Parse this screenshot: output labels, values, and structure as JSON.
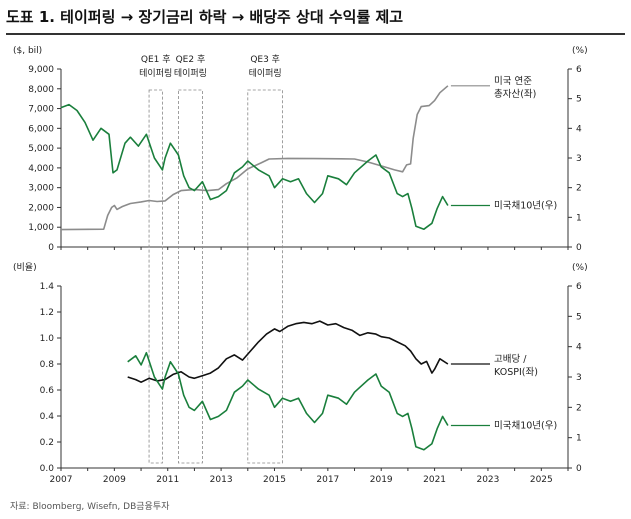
{
  "title": "도표 1. 테이퍼링 → 장기금리 하락 → 배당주 상대 수익률 제고",
  "source": "자료: Bloomberg, Wisefn, DB금융투자",
  "colors": {
    "gray": "#8c8c8c",
    "green": "#1a7f3c",
    "black": "#111111",
    "axis": "#333333"
  },
  "chart_data": [
    {
      "type": "line",
      "x_range": [
        2007,
        2026
      ],
      "left_axis": {
        "unit": "($, bil)",
        "ylim": [
          0,
          9000
        ],
        "ticks": [
          "0",
          "1,000",
          "2,000",
          "3,000",
          "4,000",
          "5,000",
          "6,000",
          "7,000",
          "8,000",
          "9,000"
        ]
      },
      "right_axis": {
        "unit": "(%)",
        "ylim": [
          0,
          6
        ],
        "ticks": [
          "0",
          "1",
          "2",
          "3",
          "4",
          "5",
          "6"
        ]
      },
      "annotations": [
        {
          "label_1": "QE1 후",
          "label_2": "테이퍼링",
          "x_start": 2010.3,
          "x_end": 2010.8
        },
        {
          "label_1": "QE2 후",
          "label_2": "테이퍼링",
          "x_start": 2011.4,
          "x_end": 2012.3
        },
        {
          "label_1": "QE3 후",
          "label_2": "테이퍼링",
          "x_start": 2014.0,
          "x_end": 2015.3
        }
      ],
      "series": [
        {
          "name": "미국 연준 총자산(좌)",
          "name_1": "미국 연준",
          "name_2": "총자산(좌)",
          "axis": "left",
          "color": "gray",
          "x": [
            2007.0,
            2008.6,
            2008.75,
            2008.9,
            2009.0,
            2009.1,
            2009.3,
            2009.6,
            2010.0,
            2010.3,
            2010.6,
            2010.9,
            2011.2,
            2011.5,
            2012.0,
            2012.5,
            2012.9,
            2013.2,
            2013.6,
            2014.0,
            2014.5,
            2014.8,
            2015.5,
            2016.5,
            2017.5,
            2018.0,
            2018.5,
            2019.0,
            2019.5,
            2019.8,
            2019.95,
            2020.1,
            2020.2,
            2020.35,
            2020.5,
            2020.8,
            2021.0,
            2021.2,
            2021.5
          ],
          "y": [
            880,
            900,
            1600,
            2000,
            2100,
            1900,
            2050,
            2200,
            2280,
            2350,
            2300,
            2330,
            2650,
            2850,
            2900,
            2850,
            2900,
            3200,
            3500,
            3950,
            4250,
            4450,
            4480,
            4470,
            4460,
            4450,
            4300,
            4100,
            3900,
            3800,
            4150,
            4200,
            5500,
            6700,
            7100,
            7150,
            7400,
            7800,
            8150
          ]
        },
        {
          "name": "미국채10년(우)",
          "axis": "right",
          "color": "green",
          "x": [
            2007.0,
            2007.3,
            2007.6,
            2007.9,
            2008.2,
            2008.5,
            2008.8,
            2008.95,
            2009.1,
            2009.4,
            2009.6,
            2009.9,
            2010.2,
            2010.5,
            2010.8,
            2010.9,
            2011.1,
            2011.4,
            2011.6,
            2011.8,
            2012.0,
            2012.3,
            2012.6,
            2012.9,
            2013.2,
            2013.5,
            2013.8,
            2014.0,
            2014.4,
            2014.8,
            2015.0,
            2015.3,
            2015.6,
            2015.9,
            2016.2,
            2016.5,
            2016.8,
            2017.0,
            2017.4,
            2017.7,
            2018.0,
            2018.5,
            2018.8,
            2019.0,
            2019.3,
            2019.6,
            2019.8,
            2020.0,
            2020.15,
            2020.3,
            2020.6,
            2020.9,
            2021.1,
            2021.3,
            2021.5
          ],
          "y": [
            4.7,
            4.8,
            4.6,
            4.2,
            3.6,
            4.0,
            3.8,
            2.5,
            2.6,
            3.5,
            3.7,
            3.4,
            3.8,
            3.0,
            2.6,
            3.0,
            3.5,
            3.1,
            2.4,
            2.0,
            1.9,
            2.2,
            1.6,
            1.7,
            1.9,
            2.5,
            2.7,
            2.9,
            2.6,
            2.4,
            2.0,
            2.3,
            2.2,
            2.3,
            1.8,
            1.5,
            1.8,
            2.4,
            2.3,
            2.1,
            2.5,
            2.9,
            3.1,
            2.7,
            2.5,
            1.8,
            1.7,
            1.8,
            1.3,
            0.7,
            0.6,
            0.8,
            1.3,
            1.7,
            1.4
          ]
        }
      ]
    },
    {
      "type": "line",
      "x_range": [
        2007,
        2026
      ],
      "xticks": [
        "2007",
        "2009",
        "2011",
        "2013",
        "2015",
        "2017",
        "2019",
        "2021",
        "2023",
        "2025"
      ],
      "left_axis": {
        "unit": "(비율)",
        "ylim": [
          0,
          1.4
        ],
        "ticks": [
          "0.0",
          "0.2",
          "0.4",
          "0.6",
          "0.8",
          "1.0",
          "1.2",
          "1.4"
        ]
      },
      "right_axis": {
        "unit": "(%)",
        "ylim": [
          0,
          6
        ],
        "ticks": [
          "0",
          "1",
          "2",
          "3",
          "4",
          "5",
          "6"
        ]
      },
      "series": [
        {
          "name": "고배당 / KOSPI(좌)",
          "name_1": "고배당 /",
          "name_2": "KOSPI(좌)",
          "axis": "left",
          "color": "black",
          "x": [
            2009.5,
            2009.8,
            2010.0,
            2010.3,
            2010.6,
            2010.9,
            2011.2,
            2011.5,
            2011.8,
            2012.0,
            2012.3,
            2012.6,
            2012.9,
            2013.2,
            2013.5,
            2013.8,
            2014.1,
            2014.4,
            2014.7,
            2015.0,
            2015.2,
            2015.5,
            2015.8,
            2016.1,
            2016.4,
            2016.7,
            2017.0,
            2017.3,
            2017.6,
            2017.9,
            2018.2,
            2018.5,
            2018.8,
            2019.0,
            2019.3,
            2019.6,
            2019.9,
            2020.1,
            2020.3,
            2020.5,
            2020.7,
            2020.9,
            2021.0,
            2021.2,
            2021.5
          ],
          "y": [
            0.7,
            0.68,
            0.66,
            0.69,
            0.67,
            0.68,
            0.72,
            0.74,
            0.7,
            0.69,
            0.71,
            0.73,
            0.77,
            0.84,
            0.87,
            0.83,
            0.9,
            0.97,
            1.03,
            1.07,
            1.05,
            1.09,
            1.11,
            1.12,
            1.11,
            1.13,
            1.1,
            1.11,
            1.08,
            1.06,
            1.02,
            1.04,
            1.03,
            1.01,
            1.0,
            0.97,
            0.94,
            0.9,
            0.84,
            0.8,
            0.82,
            0.73,
            0.76,
            0.84,
            0.8
          ]
        },
        {
          "name": "미국채10년(우)",
          "axis": "right",
          "color": "green",
          "x": [
            2009.5,
            2009.8,
            2010.0,
            2010.2,
            2010.5,
            2010.8,
            2010.9,
            2011.1,
            2011.4,
            2011.6,
            2011.8,
            2012.0,
            2012.3,
            2012.6,
            2012.9,
            2013.2,
            2013.5,
            2013.8,
            2014.0,
            2014.4,
            2014.8,
            2015.0,
            2015.3,
            2015.6,
            2015.9,
            2016.2,
            2016.5,
            2016.8,
            2017.0,
            2017.4,
            2017.7,
            2018.0,
            2018.5,
            2018.8,
            2019.0,
            2019.3,
            2019.6,
            2019.8,
            2020.0,
            2020.15,
            2020.3,
            2020.6,
            2020.9,
            2021.1,
            2021.3,
            2021.5
          ],
          "y": [
            3.5,
            3.7,
            3.4,
            3.8,
            3.0,
            2.6,
            3.0,
            3.5,
            3.1,
            2.4,
            2.0,
            1.9,
            2.2,
            1.6,
            1.7,
            1.9,
            2.5,
            2.7,
            2.9,
            2.6,
            2.4,
            2.0,
            2.3,
            2.2,
            2.3,
            1.8,
            1.5,
            1.8,
            2.4,
            2.3,
            2.1,
            2.5,
            2.9,
            3.1,
            2.7,
            2.5,
            1.8,
            1.7,
            1.8,
            1.3,
            0.7,
            0.6,
            0.8,
            1.3,
            1.7,
            1.4
          ]
        }
      ]
    }
  ]
}
